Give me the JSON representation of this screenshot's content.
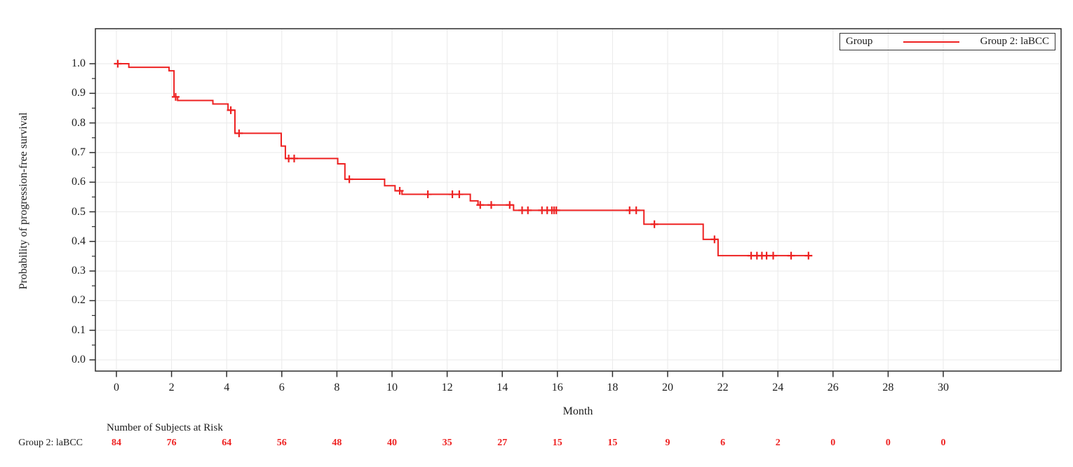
{
  "chart_data": {
    "type": "line",
    "subtype": "kaplan-meier-step",
    "title": "",
    "xlabel": "Month",
    "ylabel": "Probability of progression-free survival",
    "xlim": [
      -0.76,
      34.28
    ],
    "ylim": [
      -0.038,
      1.118
    ],
    "grid": true,
    "xticks": [
      0,
      2,
      4,
      6,
      8,
      10,
      12,
      14,
      16,
      18,
      20,
      22,
      24,
      26,
      28,
      30
    ],
    "yticks": [
      0,
      0.1,
      0.2,
      0.3,
      0.4,
      0.5,
      0.6,
      0.7,
      0.8,
      0.9,
      1
    ],
    "y_minor_tick_step": 0.05,
    "legend": {
      "position": "top-right-inside",
      "title": "Group",
      "entries": [
        {
          "label": "Group 2: laBCC",
          "color": "#ee2222"
        }
      ]
    },
    "series": [
      {
        "name": "Group 2: laBCC",
        "color": "#ee2222",
        "steps": [
          [
            0,
            1.0
          ],
          [
            0.45,
            0.988
          ],
          [
            1.91,
            0.976
          ],
          [
            2.09,
            0.888
          ],
          [
            2.22,
            0.876
          ],
          [
            3.5,
            0.864
          ],
          [
            4.05,
            0.843
          ],
          [
            4.3,
            0.765
          ],
          [
            5.98,
            0.722
          ],
          [
            6.13,
            0.68
          ],
          [
            8.03,
            0.662
          ],
          [
            8.29,
            0.61
          ],
          [
            9.73,
            0.588
          ],
          [
            10.11,
            0.571
          ],
          [
            10.36,
            0.559
          ],
          [
            12.84,
            0.537
          ],
          [
            13.12,
            0.523
          ],
          [
            14.41,
            0.505
          ],
          [
            19.14,
            0.458
          ],
          [
            21.29,
            0.407
          ],
          [
            21.83,
            0.352
          ],
          [
            25.24,
            0.352
          ]
        ],
        "censor_marks": [
          [
            0.05,
            1.0
          ],
          [
            2.15,
            0.888
          ],
          [
            4.15,
            0.843
          ],
          [
            4.45,
            0.765
          ],
          [
            6.25,
            0.68
          ],
          [
            6.45,
            0.68
          ],
          [
            8.45,
            0.61
          ],
          [
            10.28,
            0.571
          ],
          [
            11.3,
            0.559
          ],
          [
            12.19,
            0.559
          ],
          [
            12.44,
            0.559
          ],
          [
            13.2,
            0.523
          ],
          [
            13.6,
            0.523
          ],
          [
            14.27,
            0.523
          ],
          [
            14.72,
            0.505
          ],
          [
            14.93,
            0.505
          ],
          [
            15.44,
            0.505
          ],
          [
            15.63,
            0.505
          ],
          [
            15.8,
            0.505
          ],
          [
            15.88,
            0.505
          ],
          [
            15.96,
            0.505
          ],
          [
            18.62,
            0.505
          ],
          [
            18.86,
            0.505
          ],
          [
            19.52,
            0.458
          ],
          [
            21.7,
            0.407
          ],
          [
            23.03,
            0.352
          ],
          [
            23.24,
            0.352
          ],
          [
            23.42,
            0.352
          ],
          [
            23.59,
            0.352
          ],
          [
            23.83,
            0.352
          ],
          [
            24.48,
            0.352
          ],
          [
            25.11,
            0.352
          ]
        ]
      }
    ],
    "risk_table": {
      "title": "Number of Subjects at Risk",
      "row_label": "Group 2: laBCC",
      "color": "#ee2222",
      "months": [
        0,
        2,
        4,
        6,
        8,
        10,
        12,
        14,
        16,
        18,
        20,
        22,
        24,
        26,
        28,
        30
      ],
      "counts": [
        84,
        76,
        64,
        56,
        48,
        40,
        35,
        27,
        15,
        15,
        9,
        6,
        2,
        0,
        0,
        0
      ]
    }
  }
}
